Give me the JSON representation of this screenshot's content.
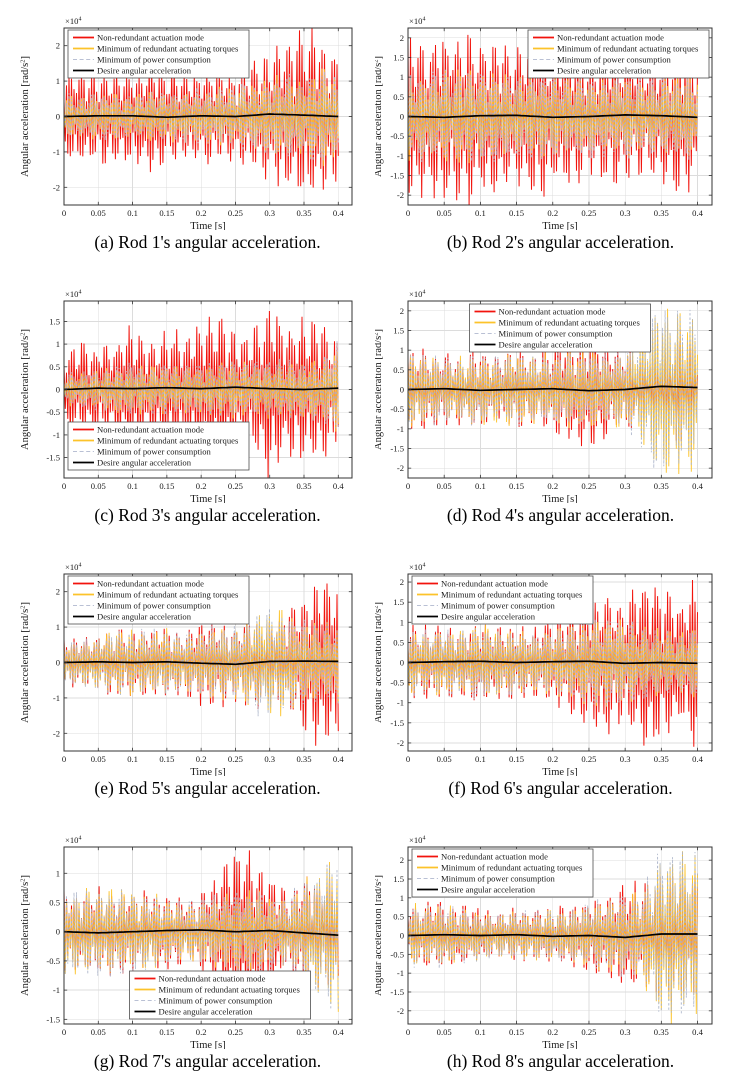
{
  "figure": {
    "ylabel_prefix": "Angular acceleration [rad/s",
    "ylabel_sup": "2",
    "ylabel_suffix": "]",
    "xlabel": "Time [s]",
    "exponent_prefix": "×10",
    "exponent_sup": "4"
  },
  "style": {
    "red": "#f2130c",
    "yellow": "#fcc32a",
    "gray": "#aab3c8",
    "grid_color": "#dcdcdc",
    "axis_color": "#333333",
    "legend_border": "#4d4d4d"
  },
  "legend": {
    "entries": [
      {
        "label": "Non-redundant actuation mode",
        "color": "#f2130c",
        "width": 1.7,
        "dash": false
      },
      {
        "label": "Minimum of redundant actuating torques",
        "color": "#fcc32a",
        "width": 1.7,
        "dash": false
      },
      {
        "label": "Minimum of power consumption",
        "color": "#b9c0d4",
        "width": 1,
        "dash": true
      },
      {
        "label": "Desire angular acceleration",
        "color": "#000000",
        "width": 1.7,
        "dash": false
      }
    ]
  },
  "chart_data": [
    {
      "id": "a",
      "type": "line",
      "caption": "(a) Rod 1's angular acceleration.",
      "xlabel": "Time [s]",
      "ylabel": "Angular acceleration [rad/s^2]",
      "y_scale": "x10^4",
      "xlim": [
        0,
        0.42
      ],
      "x_ticks": [
        0,
        0.05,
        0.1,
        0.15,
        0.2,
        0.25,
        0.3,
        0.35,
        0.4
      ],
      "ylim": [
        -2.5,
        2.5
      ],
      "y_ticks": [
        -2,
        -1,
        0,
        1,
        2
      ],
      "legend_pos": "top-left",
      "series": {
        "envelope_t_step": 0.025,
        "non_redundant_env": [
          1.5,
          1.35,
          1.3,
          1.45,
          1.3,
          1.5,
          1.35,
          1.3,
          1.25,
          1.35,
          1.2,
          1.5,
          1.8,
          2.1,
          2.45,
          2.2,
          1.9
        ],
        "min_torques_env": [
          0.65,
          0.6,
          0.62,
          0.66,
          0.6,
          0.72,
          0.68,
          0.72,
          0.75,
          0.8,
          0.82,
          0.95,
          1.05,
          1.15,
          1.0,
          1.4,
          1.05
        ],
        "min_power_env_scale": 1.02,
        "desire": [
          0,
          0.02,
          0.02,
          -0.02,
          0.02,
          0,
          0.07,
          0.04,
          0
        ]
      }
    },
    {
      "id": "b",
      "type": "line",
      "caption": "(b) Rod 2's angular acceleration.",
      "xlabel": "Time [s]",
      "ylabel": "Angular acceleration [rad/s^2]",
      "y_scale": "x10^4",
      "xlim": [
        0,
        0.42
      ],
      "x_ticks": [
        0,
        0.05,
        0.1,
        0.15,
        0.2,
        0.25,
        0.3,
        0.35,
        0.4
      ],
      "ylim": [
        -2.25,
        2.25
      ],
      "y_ticks": [
        -2,
        -1.5,
        -1,
        -0.5,
        0,
        0.5,
        1,
        1.5,
        2
      ],
      "legend_pos": "top-right",
      "series": {
        "envelope_t_step": 0.025,
        "non_redundant_env": [
          2.1,
          1.9,
          2.1,
          2.3,
          1.95,
          2.1,
          1.7,
          2.25,
          1.85,
          1.75,
          1.55,
          1.65,
          1.8,
          1.4,
          1.6,
          1.95,
          1.75
        ],
        "min_torques_env": [
          1.05,
          1.1,
          1.15,
          1.2,
          1.05,
          1.1,
          1.0,
          1.1,
          1.0,
          0.95,
          1.0,
          0.92,
          1.05,
          0.88,
          0.98,
          1.05,
          1.0
        ],
        "min_power_env_scale": 1.02,
        "desire": [
          0,
          -0.02,
          0.02,
          0.03,
          -0.02,
          0,
          0.04,
          0.02,
          -0.02
        ]
      }
    },
    {
      "id": "c",
      "type": "line",
      "caption": "(c) Rod 3's angular acceleration.",
      "xlabel": "Time [s]",
      "ylabel": "Angular acceleration [rad/s^2]",
      "y_scale": "x10^4",
      "xlim": [
        0,
        0.42
      ],
      "x_ticks": [
        0,
        0.05,
        0.1,
        0.15,
        0.2,
        0.25,
        0.3,
        0.35,
        0.4
      ],
      "ylim": [
        -1.95,
        1.95
      ],
      "y_ticks": [
        -1.5,
        -1,
        -0.5,
        0,
        0.5,
        1,
        1.5
      ],
      "legend_pos": "bottom-left",
      "series": {
        "envelope_t_step": 0.025,
        "non_redundant_env": [
          0.95,
          1.05,
          1.0,
          1.05,
          1.45,
          1.05,
          1.35,
          1.25,
          1.55,
          1.85,
          1.15,
          1.35,
          1.9,
          1.45,
          1.55,
          1.65,
          1.1
        ],
        "min_torques_env": [
          0.35,
          0.4,
          0.42,
          0.5,
          0.55,
          0.5,
          0.55,
          0.52,
          0.55,
          0.58,
          0.6,
          0.58,
          0.62,
          0.66,
          0.62,
          0.68,
          1.0
        ],
        "min_power_env_scale": 1.02,
        "desire": [
          0,
          0.03,
          0.02,
          0.04,
          0.02,
          0.05,
          0.02,
          0,
          0.03
        ]
      }
    },
    {
      "id": "d",
      "type": "line",
      "caption": "(d) Rod 4's angular acceleration.",
      "xlabel": "Time [s]",
      "ylabel": "Angular acceleration [rad/s^2]",
      "y_scale": "x10^4",
      "xlim": [
        0,
        0.42
      ],
      "x_ticks": [
        0,
        0.05,
        0.1,
        0.15,
        0.2,
        0.25,
        0.3,
        0.35,
        0.4
      ],
      "ylim": [
        -2.25,
        2.25
      ],
      "y_ticks": [
        -2,
        -1.5,
        -1,
        -0.5,
        0,
        0.5,
        1,
        1.5,
        2
      ],
      "legend_pos": "top-center",
      "series": {
        "envelope_t_step": 0.025,
        "non_redundant_env": [
          1.05,
          1.0,
          0.9,
          0.85,
          0.95,
          0.85,
          1.0,
          0.9,
          1.15,
          1.35,
          1.5,
          1.25,
          1.05,
          0.9,
          0.85,
          1.5,
          1.0
        ],
        "min_torques_env": [
          0.95,
          0.9,
          0.85,
          0.8,
          0.88,
          0.8,
          0.92,
          0.85,
          0.92,
          0.95,
          1.0,
          0.95,
          0.98,
          1.5,
          2.25,
          2.0,
          2.1
        ],
        "min_power_env_scale": 1.02,
        "desire": [
          0,
          0.02,
          -0.02,
          0,
          0.02,
          -0.03,
          0,
          0.08,
          0.05
        ]
      }
    },
    {
      "id": "e",
      "type": "line",
      "caption": "(e) Rod 5's angular acceleration.",
      "xlabel": "Time [s]",
      "ylabel": "Angular acceleration [rad/s^2]",
      "y_scale": "x10^4",
      "xlim": [
        0,
        0.42
      ],
      "x_ticks": [
        0,
        0.05,
        0.1,
        0.15,
        0.2,
        0.25,
        0.3,
        0.35,
        0.4
      ],
      "ylim": [
        -2.5,
        2.5
      ],
      "y_ticks": [
        -2,
        -1,
        0,
        1,
        2
      ],
      "legend_pos": "top-left",
      "series": {
        "envelope_t_step": 0.025,
        "non_redundant_env": [
          0.72,
          0.68,
          0.75,
          1.0,
          0.95,
          0.98,
          1.0,
          0.85,
          1.15,
          1.25,
          1.05,
          1.35,
          1.15,
          1.55,
          1.85,
          2.45,
          2.3
        ],
        "min_torques_env": [
          0.68,
          0.64,
          0.7,
          0.95,
          0.9,
          0.92,
          0.95,
          0.8,
          0.95,
          1.05,
          1.0,
          1.35,
          1.55,
          1.45,
          1.2,
          1.05,
          1.1
        ],
        "min_power_env_scale": 1.02,
        "desire": [
          0,
          0.02,
          0,
          0.02,
          -0.02,
          -0.05,
          0.03,
          0.04,
          0.03
        ]
      }
    },
    {
      "id": "f",
      "type": "line",
      "caption": "(f) Rod 6's angular acceleration.",
      "xlabel": "Time [s]",
      "ylabel": "Angular acceleration [rad/s^2]",
      "y_scale": "x10^4",
      "xlim": [
        0,
        0.42
      ],
      "x_ticks": [
        0,
        0.05,
        0.1,
        0.15,
        0.2,
        0.25,
        0.3,
        0.35,
        0.4
      ],
      "ylim": [
        -2.2,
        2.2
      ],
      "y_ticks": [
        -2,
        -1.5,
        -1,
        -0.5,
        0,
        0.5,
        1,
        1.5,
        2
      ],
      "legend_pos": "top-left",
      "series": {
        "envelope_t_step": 0.025,
        "non_redundant_env": [
          0.92,
          0.88,
          0.95,
          0.85,
          1.05,
          0.95,
          0.88,
          0.85,
          1.05,
          1.35,
          1.55,
          1.85,
          1.65,
          2.1,
          1.95,
          1.55,
          2.1
        ],
        "min_torques_env": [
          0.82,
          0.78,
          0.88,
          0.78,
          0.92,
          0.82,
          0.78,
          0.72,
          0.82,
          0.92,
          1.0,
          1.1,
          1.0,
          0.92,
          0.82,
          0.72,
          0.95
        ],
        "min_power_env_scale": 1.02,
        "desire": [
          0,
          0.02,
          0.03,
          0,
          0.02,
          0.03,
          -0.02,
          0,
          -0.02
        ]
      }
    },
    {
      "id": "g",
      "type": "line",
      "caption": "(g) Rod 7's angular acceleration.",
      "xlabel": "Time [s]",
      "ylabel": "Angular acceleration [rad/s^2]",
      "y_scale": "x10^4",
      "xlim": [
        0,
        0.42
      ],
      "x_ticks": [
        0,
        0.05,
        0.1,
        0.15,
        0.2,
        0.25,
        0.3,
        0.35,
        0.4
      ],
      "ylim": [
        -1.58,
        1.45
      ],
      "y_ticks": [
        -1.5,
        -1,
        -0.5,
        0,
        0.5,
        1
      ],
      "legend_pos": "bottom-center",
      "series": {
        "envelope_t_step": 0.025,
        "non_redundant_env": [
          0.75,
          0.72,
          0.76,
          0.72,
          0.7,
          0.66,
          0.62,
          0.52,
          0.62,
          1.05,
          1.5,
          1.3,
          1.05,
          0.62,
          0.92,
          0.95,
          1.05
        ],
        "min_torques_env": [
          0.72,
          0.7,
          0.73,
          0.7,
          0.68,
          0.62,
          0.58,
          0.48,
          0.58,
          0.62,
          0.68,
          0.72,
          0.62,
          0.58,
          0.88,
          1.05,
          1.5
        ],
        "min_power_env_scale": 1.02,
        "desire": [
          0,
          -0.02,
          0,
          0.02,
          0.03,
          0,
          0.02,
          -0.02,
          -0.06
        ]
      }
    },
    {
      "id": "h",
      "type": "line",
      "caption": "(h) Rod 8's angular acceleration.",
      "xlabel": "Time [s]",
      "ylabel": "Angular acceleration [rad/s^2]",
      "y_scale": "x10^4",
      "xlim": [
        0,
        0.42
      ],
      "x_ticks": [
        0,
        0.05,
        0.1,
        0.15,
        0.2,
        0.25,
        0.3,
        0.35,
        0.4
      ],
      "ylim": [
        -2.35,
        2.35
      ],
      "y_ticks": [
        -2,
        -1.5,
        -1,
        -0.5,
        0,
        0.5,
        1,
        1.5,
        2
      ],
      "legend_pos": "top-left",
      "series": {
        "envelope_t_step": 0.025,
        "non_redundant_env": [
          0.92,
          0.88,
          0.9,
          0.82,
          0.72,
          0.62,
          0.72,
          0.68,
          0.72,
          0.82,
          0.95,
          1.15,
          1.45,
          1.35,
          1.65,
          1.85,
          1.65
        ],
        "min_torques_env": [
          0.82,
          0.78,
          0.82,
          0.72,
          0.62,
          0.58,
          0.62,
          0.62,
          0.68,
          0.72,
          0.82,
          0.95,
          1.05,
          1.25,
          2.3,
          2.2,
          2.0
        ],
        "min_power_env_scale": 1.02,
        "desire": [
          0,
          0.02,
          0,
          0.02,
          -0.02,
          0,
          -0.05,
          0.04,
          0.04
        ]
      }
    }
  ]
}
